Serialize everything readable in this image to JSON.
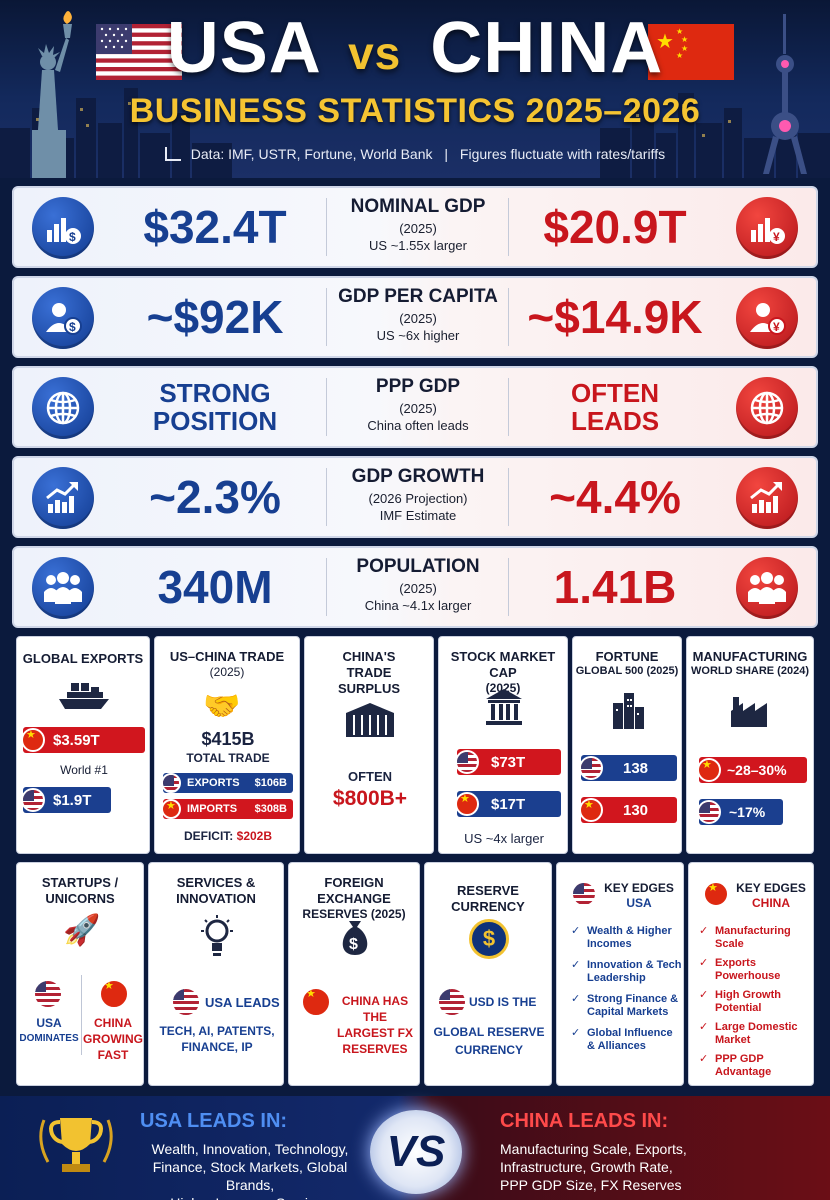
{
  "header": {
    "title_left": "USA",
    "title_vs": "vs",
    "title_right": "CHINA",
    "subtitle": "BUSINESS STATISTICS 2025–2026",
    "sources": "Data: IMF, USTR, Fortune, World Bank",
    "note": "Figures fluctuate with rates/tariffs"
  },
  "stats": [
    {
      "us_value": "$32.4T",
      "label": "NOMINAL GDP",
      "sub": "(2025)",
      "note": "US ~1.55x larger",
      "cn_value": "$20.9T",
      "icon_us": "chart-dollar-icon",
      "icon_cn": "chart-yen-icon"
    },
    {
      "us_value": "~$92K",
      "label": "GDP PER CAPITA",
      "sub": "(2025)",
      "note": "US ~6x higher",
      "cn_value": "~$14.9K",
      "icon_us": "person-dollar-icon",
      "icon_cn": "person-yen-icon"
    },
    {
      "us_value": "STRONG POSITION",
      "label": "PPP GDP",
      "sub": "(2025)",
      "note": "China often leads",
      "cn_value": "OFTEN LEADS",
      "icon_us": "globe-icon",
      "icon_cn": "globe-icon"
    },
    {
      "us_value": "~2.3%",
      "label": "GDP GROWTH",
      "sub": "(2026 Projection)",
      "note": "IMF Estimate",
      "cn_value": "~4.4%",
      "icon_us": "growth-arrow-icon",
      "icon_cn": "growth-arrow-icon"
    },
    {
      "us_value": "340M",
      "label": "POPULATION",
      "sub": "(2025)",
      "note": "China ~4.1x larger",
      "cn_value": "1.41B",
      "icon_us": "people-icon",
      "icon_cn": "people-icon"
    }
  ],
  "boxes1": {
    "exports": {
      "title": "GLOBAL EXPORTS",
      "cn": "$3.59T",
      "rank": "World #1",
      "us": "$1.9T"
    },
    "trade": {
      "title": "US–CHINA TRADE",
      "sub": "(2025)",
      "total": "$415B",
      "total_label": "TOTAL TRADE",
      "exports_label": "EXPORTS",
      "exports_value": "$106B",
      "imports_label": "IMPORTS",
      "imports_value": "$308B",
      "deficit_label": "DEFICIT:",
      "deficit_value": "$202B"
    },
    "surplus": {
      "title": "CHINA'S TRADE SURPLUS",
      "often": "OFTEN",
      "value": "$800B+"
    },
    "stock": {
      "title": "STOCK MARKET CAP",
      "sub": "(2025)",
      "us": "$73T",
      "cn": "$17T",
      "note": "US ~4x larger"
    },
    "fortune": {
      "title": "FORTUNE",
      "sub": "GLOBAL 500 (2025)",
      "us": "138",
      "cn": "130"
    },
    "manufacturing": {
      "title": "MANUFACTURING",
      "sub": "WORLD SHARE (2024)",
      "cn": "~28–30%",
      "us": "~17%"
    }
  },
  "boxes2": {
    "startups": {
      "title": "STARTUPS / UNICORNS",
      "us_a": "USA",
      "us_b": "DOMINATES",
      "cn_a": "CHINA",
      "cn_b": "GROWING",
      "cn_c": "FAST"
    },
    "services": {
      "title": "SERVICES & INNOVATION",
      "leads": "USA LEADS",
      "detail_a": "TECH, AI, PATENTS,",
      "detail_b": "FINANCE, IP"
    },
    "fx": {
      "title": "FOREIGN EXCHANGE",
      "sub": "RESERVES (2025)",
      "text_a": "CHINA HAS THE",
      "text_b": "LARGEST FX",
      "text_c": "RESERVES"
    },
    "currency": {
      "title": "RESERVE CURRENCY",
      "text_a": "USD IS THE",
      "text_b": "GLOBAL RESERVE",
      "text_c": "CURRENCY"
    },
    "edges_us": {
      "title": "KEY EDGES",
      "country": "USA",
      "items": [
        "Wealth & Higher Incomes",
        "Innovation & Tech Leadership",
        "Strong Finance & Capital Markets",
        "Global Influence & Alliances"
      ]
    },
    "edges_cn": {
      "title": "KEY EDGES",
      "country": "CHINA",
      "items": [
        "Manufacturing Scale",
        "Exports Powerhouse",
        "High Growth Potential",
        "Large Domestic Market",
        "PPP GDP Advantage"
      ]
    }
  },
  "footer": {
    "us_title": "USA LEADS IN:",
    "us_lines": [
      "Wealth, Innovation, Technology,",
      "Finance, Stock Markets, Global Brands,",
      "Higher Incomes, Services"
    ],
    "vs": "VS",
    "cn_title": "CHINA LEADS IN:",
    "cn_lines": [
      "Manufacturing Scale, Exports,",
      "Infrastructure, Growth Rate,",
      "PPP GDP Size, FX Reserves"
    ]
  },
  "colors": {
    "us_blue": "#173f91",
    "cn_red": "#c8161d",
    "gold": "#f5c432",
    "navy": "#0b1a3d"
  }
}
